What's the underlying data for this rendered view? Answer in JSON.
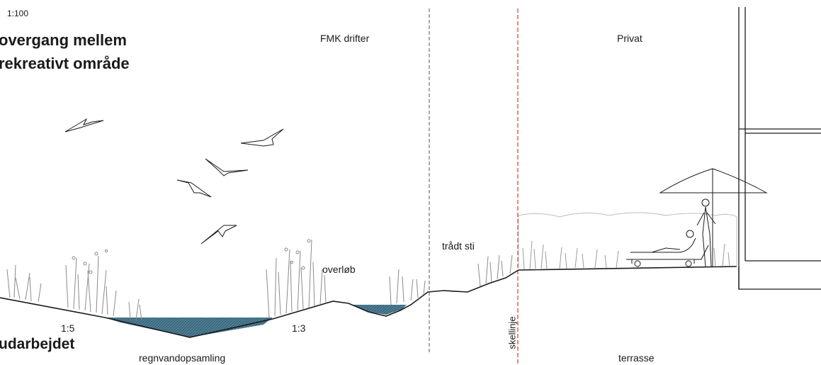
{
  "scale": "1:100",
  "title": {
    "line1": "overgang mellem",
    "line2": "rekreativt område"
  },
  "footer_heading": "udarbejdet",
  "zones": {
    "left": "FMK drifter",
    "right": "Privat"
  },
  "labels": {
    "overflow": "overløb",
    "path": "trådt sti",
    "slope_left": "1:5",
    "slope_right": "1:3",
    "basin": "regnvandopsamling",
    "property_line": "skellinje",
    "terrace": "terrasse"
  },
  "colors": {
    "ink": "#1a1a1a",
    "water": "#3d6f86",
    "property_line": "#d23a3a",
    "zone_divider": "#555555",
    "vegetation": "#8a8a8a"
  },
  "icons": [
    "bird-icon",
    "umbrella-icon",
    "person-lounger-icon",
    "person-standing-icon"
  ]
}
